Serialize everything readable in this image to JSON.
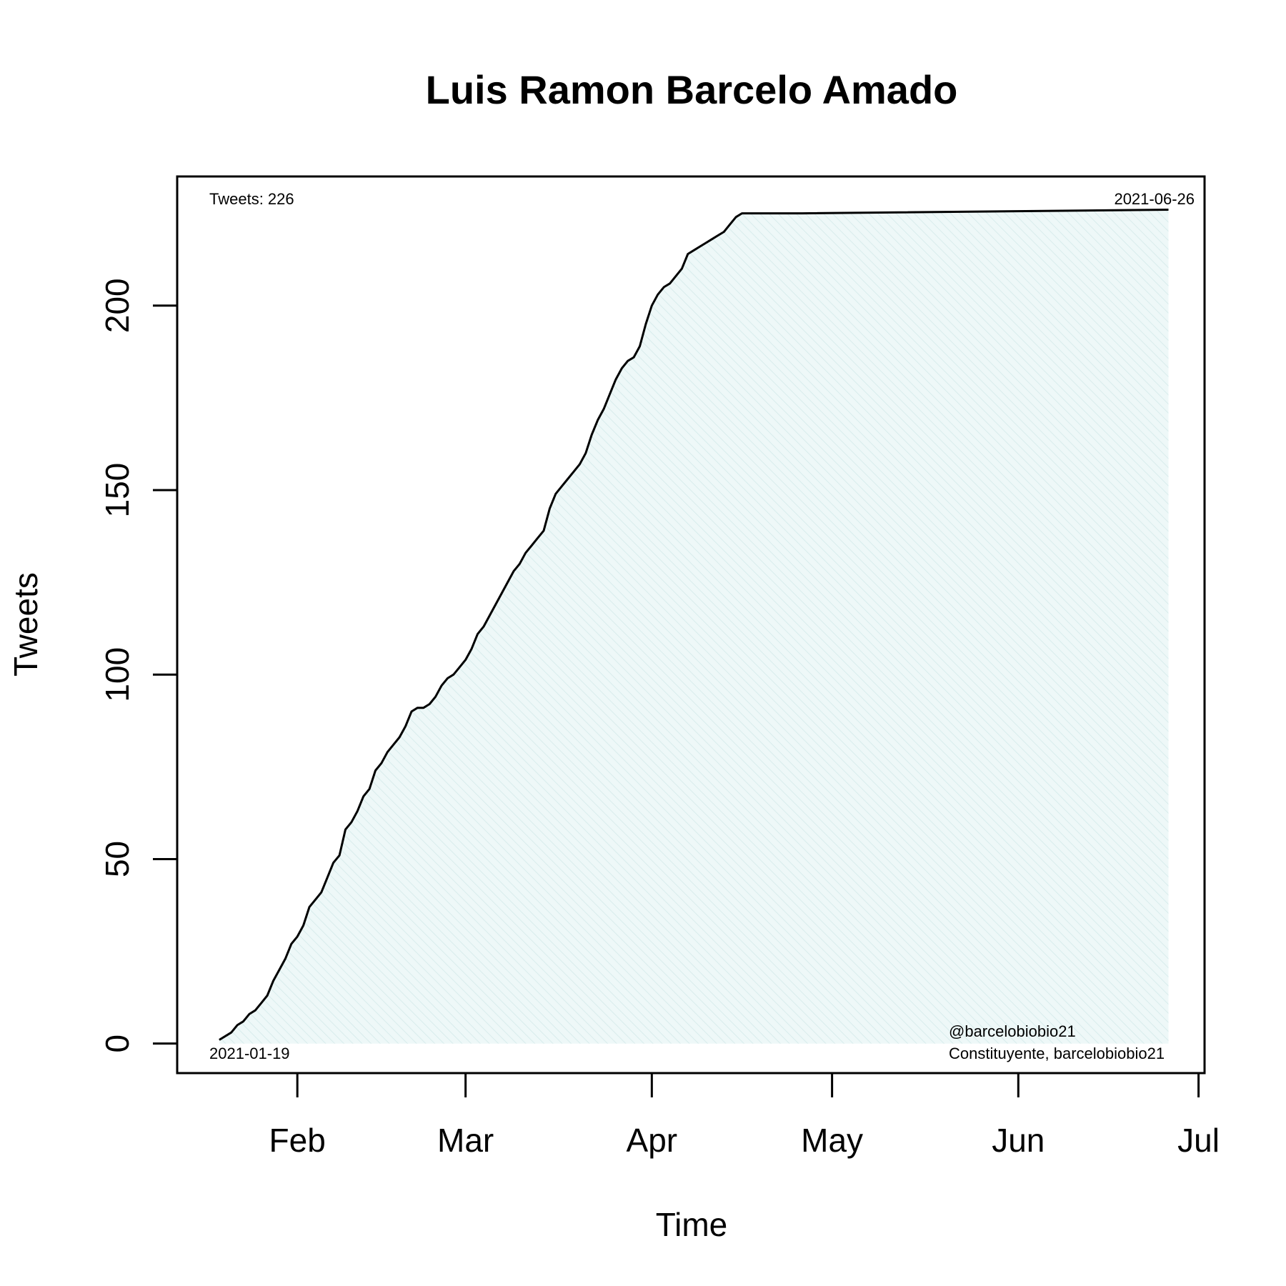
{
  "chart_data": {
    "type": "area",
    "title": "Luis Ramon Barcelo Amado",
    "xlabel": "Time",
    "ylabel": "Tweets",
    "x_ticks": [
      {
        "date": "2021-02-01",
        "label": "Feb"
      },
      {
        "date": "2021-03-01",
        "label": "Mar"
      },
      {
        "date": "2021-04-01",
        "label": "Apr"
      },
      {
        "date": "2021-05-01",
        "label": "May"
      },
      {
        "date": "2021-06-01",
        "label": "Jun"
      },
      {
        "date": "2021-07-01",
        "label": "Jul"
      }
    ],
    "xlim": [
      "2021-01-12",
      "2021-07-02"
    ],
    "y_ticks": [
      0,
      50,
      100,
      150,
      200
    ],
    "ylim": [
      -8,
      235
    ],
    "grid": false,
    "annotations": {
      "top_left": "Tweets: 226",
      "top_right": "2021-06-26",
      "bottom_left": "2021-01-19",
      "bottom_right_line1": "@barcelobiobio21",
      "bottom_right_line2": "Constituyente, barcelobiobio21"
    },
    "series": [
      {
        "color": "#000000",
        "fill": "#e6f4f4",
        "x": [
          "2021-01-19",
          "2021-01-21",
          "2021-01-22",
          "2021-01-23",
          "2021-01-24",
          "2021-01-25",
          "2021-01-26",
          "2021-01-27",
          "2021-01-28",
          "2021-01-29",
          "2021-01-30",
          "2021-01-31",
          "2021-02-01",
          "2021-02-02",
          "2021-02-03",
          "2021-02-04",
          "2021-02-05",
          "2021-02-06",
          "2021-02-07",
          "2021-02-08",
          "2021-02-09",
          "2021-02-10",
          "2021-02-11",
          "2021-02-12",
          "2021-02-13",
          "2021-02-14",
          "2021-02-15",
          "2021-02-16",
          "2021-02-17",
          "2021-02-18",
          "2021-02-19",
          "2021-02-20",
          "2021-02-21",
          "2021-02-22",
          "2021-02-23",
          "2021-02-24",
          "2021-02-25",
          "2021-02-26",
          "2021-02-27",
          "2021-02-28",
          "2021-03-01",
          "2021-03-02",
          "2021-03-03",
          "2021-03-04",
          "2021-03-05",
          "2021-03-06",
          "2021-03-07",
          "2021-03-08",
          "2021-03-09",
          "2021-03-10",
          "2021-03-11",
          "2021-03-12",
          "2021-03-13",
          "2021-03-14",
          "2021-03-15",
          "2021-03-16",
          "2021-03-17",
          "2021-03-18",
          "2021-03-19",
          "2021-03-20",
          "2021-03-21",
          "2021-03-22",
          "2021-03-23",
          "2021-03-24",
          "2021-03-25",
          "2021-03-26",
          "2021-03-27",
          "2021-03-28",
          "2021-03-29",
          "2021-03-30",
          "2021-03-31",
          "2021-04-01",
          "2021-04-02",
          "2021-04-03",
          "2021-04-04",
          "2021-04-05",
          "2021-04-06",
          "2021-04-07",
          "2021-04-08",
          "2021-04-09",
          "2021-04-10",
          "2021-04-11",
          "2021-04-12",
          "2021-04-13",
          "2021-04-14",
          "2021-04-15",
          "2021-04-16",
          "2021-04-17",
          "2021-04-18",
          "2021-04-19",
          "2021-04-20",
          "2021-04-21",
          "2021-04-22",
          "2021-04-23",
          "2021-04-24",
          "2021-04-25",
          "2021-04-26",
          "2021-06-26"
        ],
        "values": [
          1,
          3,
          5,
          6,
          8,
          9,
          11,
          13,
          17,
          20,
          23,
          27,
          29,
          32,
          37,
          39,
          41,
          45,
          49,
          51,
          58,
          60,
          63,
          67,
          69,
          74,
          76,
          79,
          81,
          83,
          86,
          90,
          91,
          91,
          92,
          94,
          97,
          99,
          100,
          102,
          104,
          107,
          111,
          113,
          116,
          119,
          122,
          125,
          128,
          130,
          133,
          135,
          137,
          139,
          145,
          149,
          151,
          153,
          155,
          157,
          160,
          165,
          169,
          172,
          176,
          180,
          183,
          185,
          186,
          189,
          195,
          200,
          203,
          205,
          206,
          208,
          210,
          214,
          215,
          216,
          217,
          218,
          219,
          220,
          222,
          224,
          225,
          225,
          225,
          225,
          225,
          225,
          225,
          225,
          225,
          225,
          225,
          226
        ]
      }
    ]
  }
}
